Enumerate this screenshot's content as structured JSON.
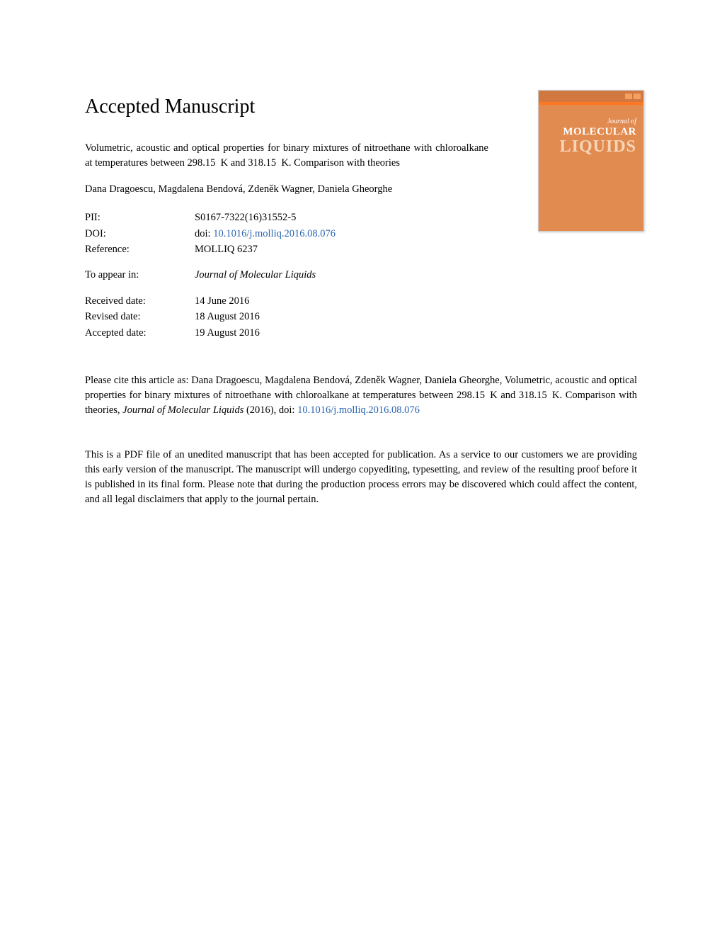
{
  "header": {
    "title": "Accepted Manuscript"
  },
  "journal_cover": {
    "journal_of": "Journal of",
    "molecular": "MOLECULAR",
    "liquids": "LIQUIDS",
    "background_color": "#e28b50",
    "text_color": "#ffffff",
    "liquids_color": "#f5d5b8"
  },
  "article": {
    "title": "Volumetric, acoustic and optical properties for binary mixtures of nitroethane with chloroalkane at temperatures between 298.15 K and 318.15 K. Comparison with theories",
    "authors": "Dana Dragoescu, Magdalena Bendová, Zdeněk Wagner, Daniela Gheorghe"
  },
  "metadata": {
    "pii_label": "PII:",
    "pii_value": "S0167-7322(16)31552-5",
    "doi_label": "DOI:",
    "doi_prefix": "doi: ",
    "doi_value": "10.1016/j.molliq.2016.08.076",
    "reference_label": "Reference:",
    "reference_value": "MOLLIQ 6237",
    "appear_label": "To appear in:",
    "appear_value": "Journal of Molecular Liquids",
    "received_label": "Received date:",
    "received_value": "14 June 2016",
    "revised_label": "Revised date:",
    "revised_value": "18 August 2016",
    "accepted_label": "Accepted date:",
    "accepted_value": "19 August 2016"
  },
  "citation": {
    "text_before": "Please cite this article as: Dana Dragoescu, Magdalena Bendová, Zdeněk Wagner, Daniela Gheorghe, Volumetric, acoustic and optical properties for binary mixtures of nitroethane with chloroalkane at temperatures between 298.15 K and 318.15 K. Comparison with theories, ",
    "journal": "Journal of Molecular Liquids",
    "year": " (2016), doi: ",
    "doi_link": "10.1016/j.molliq.2016.08.076"
  },
  "disclaimer": {
    "text": "This is a PDF file of an unedited manuscript that has been accepted for publication. As a service to our customers we are providing this early version of the manuscript. The manuscript will undergo copyediting, typesetting, and review of the resulting proof before it is published in its final form. Please note that during the production process errors may be discovered which could affect the content, and all legal disclaimers that apply to the journal pertain."
  },
  "colors": {
    "link_color": "#2864b0",
    "text_color": "#000000",
    "background": "#ffffff"
  },
  "typography": {
    "title_fontsize": 28,
    "body_fontsize": 14.5,
    "font_family": "Georgia, Times New Roman, serif"
  }
}
